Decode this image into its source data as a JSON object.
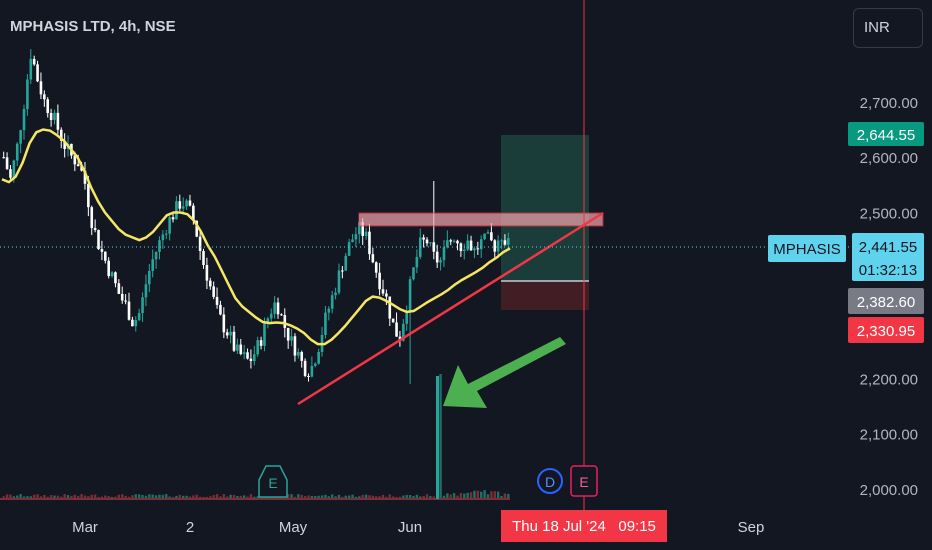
{
  "header": {
    "title": "MPHASIS LTD, 4h, NSE",
    "currency": "INR"
  },
  "colors": {
    "background": "#131722",
    "candle_up": "#26a69a",
    "candle_down": "#ffffff",
    "moving_average": "#f5e663",
    "trendline": "#f23645",
    "resistance_zone": "#f7a6ad",
    "arrow": "#4caf50",
    "target_zone": "#1e4b42",
    "stop_zone": "#4a1f24",
    "price_tag": "#5fd3ee",
    "target_tag": "#089981",
    "stop_tag": "#f23645",
    "entry_tag": "#787b86"
  },
  "labels": {
    "symbol_tag": "MPHASIS",
    "current_price": "2,441.55",
    "countdown": "01:32:13",
    "target_price": "2,644.55",
    "entry_price": "2,382.60",
    "stop_price": "2,330.95",
    "crosshair_date": "Thu 18 Jul '24   09:15",
    "earnings_marker": "E",
    "dividend_marker": "D"
  },
  "chart_data": {
    "type": "candlestick",
    "title": "MPHASIS LTD, 4h, NSE",
    "y_ticks": [
      "2,000.00",
      "2,100.00",
      "2,200.00",
      "2,300.00",
      "2,400.00",
      "2,500.00",
      "2,600.00",
      "2,700.00"
    ],
    "y_tick_values": [
      2000,
      2100,
      2200,
      2300,
      2400,
      2500,
      2600,
      2700
    ],
    "x_ticks": [
      "Mar",
      "2",
      "May",
      "Jun",
      "Sep"
    ],
    "ylim": [
      1990,
      2780
    ],
    "close_path": [
      2600,
      2560,
      2620,
      2700,
      2790,
      2740,
      2700,
      2680,
      2650,
      2620,
      2600,
      2590,
      2550,
      2480,
      2440,
      2410,
      2380,
      2350,
      2330,
      2300,
      2320,
      2380,
      2420,
      2450,
      2480,
      2500,
      2520,
      2510,
      2480,
      2420,
      2380,
      2330,
      2300,
      2280,
      2250,
      2240,
      2230,
      2250,
      2280,
      2320,
      2340,
      2300,
      2270,
      2250,
      2220,
      2215,
      2250,
      2300,
      2340,
      2380,
      2420,
      2450,
      2470,
      2460,
      2420,
      2380,
      2350,
      2300,
      2270,
      2330,
      2390,
      2440,
      2450,
      2420,
      2410,
      2440,
      2460,
      2440,
      2450,
      2430,
      2445,
      2450,
      2440,
      2460,
      2441.55
    ],
    "moving_average_path": [
      2560,
      2555,
      2565,
      2590,
      2625,
      2645,
      2650,
      2648,
      2640,
      2630,
      2615,
      2600,
      2575,
      2545,
      2520,
      2500,
      2485,
      2470,
      2460,
      2455,
      2450,
      2455,
      2465,
      2480,
      2495,
      2500,
      2500,
      2497,
      2485,
      2465,
      2440,
      2420,
      2395,
      2370,
      2345,
      2330,
      2320,
      2310,
      2302,
      2300,
      2301,
      2300,
      2296,
      2290,
      2282,
      2270,
      2262,
      2262,
      2270,
      2282,
      2295,
      2310,
      2325,
      2340,
      2348,
      2346,
      2340,
      2333,
      2325,
      2320,
      2322,
      2330,
      2338,
      2345,
      2352,
      2360,
      2370,
      2378,
      2385,
      2392,
      2400,
      2410,
      2418,
      2428,
      2435
    ],
    "target_level": 2644.55,
    "entry_level": 2382.6,
    "stop_level": 2330.95,
    "current_price": 2441.55,
    "resistance_zone": [
      2483,
      2508
    ],
    "trendline_from": 2135,
    "trendline_to": 2500
  }
}
